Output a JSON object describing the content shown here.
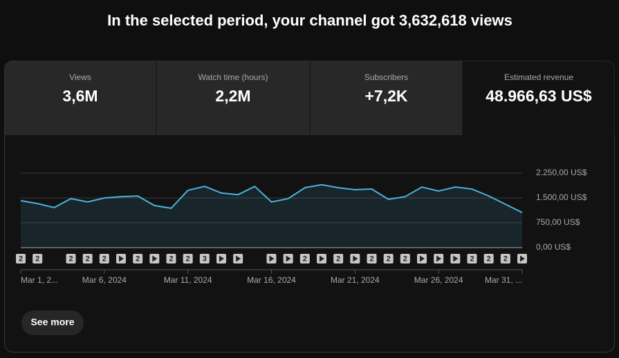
{
  "header": {
    "title": "In the selected period, your channel got 3,632,618 views"
  },
  "metrics": [
    {
      "label": "Views",
      "value": "3,6M"
    },
    {
      "label": "Watch time (hours)",
      "value": "2,2M"
    },
    {
      "label": "Subscribers",
      "value": "+7,2K"
    },
    {
      "label": "Estimated revenue",
      "value": "48.966,63 US$"
    }
  ],
  "chart_data": {
    "type": "area",
    "categories": [
      "Mar 1, 2...",
      null,
      null,
      null,
      null,
      "Mar 6, 2024",
      null,
      null,
      null,
      null,
      "Mar 11, 2024",
      null,
      null,
      null,
      null,
      "Mar 16, 2024",
      null,
      null,
      null,
      null,
      "Mar 21, 2024",
      null,
      null,
      null,
      null,
      "Mar 26, 2024",
      null,
      null,
      null,
      null,
      "Mar 31, ..."
    ],
    "values": [
      1420,
      1330,
      1210,
      1480,
      1380,
      1500,
      1540,
      1560,
      1270,
      1190,
      1730,
      1850,
      1650,
      1600,
      1850,
      1380,
      1480,
      1810,
      1900,
      1810,
      1750,
      1770,
      1460,
      1540,
      1830,
      1710,
      1830,
      1770,
      1560,
      1310,
      1060
    ],
    "color": "#4cb4dc",
    "ylim": [
      0,
      2250
    ],
    "yticks": [
      {
        "value": 0,
        "label": "0,00 US$"
      },
      {
        "value": 750,
        "label": "750,00 US$"
      },
      {
        "value": 1500,
        "label": "1.500,00 US$"
      },
      {
        "value": 2250,
        "label": "2.250,00 US$"
      }
    ],
    "grid": true,
    "annotations": [
      "2",
      "2",
      null,
      "2",
      "2",
      "2",
      {
        "icon": "play"
      },
      "2",
      {
        "icon": "play"
      },
      "2",
      "2",
      "3",
      {
        "icon": "play"
      },
      {
        "icon": "play"
      },
      null,
      {
        "icon": "play"
      },
      {
        "icon": "play"
      },
      "2",
      {
        "icon": "play"
      },
      "2",
      {
        "icon": "play"
      },
      "2",
      "2",
      "2",
      {
        "icon": "play"
      },
      {
        "icon": "play"
      },
      {
        "icon": "play"
      },
      "2",
      "2",
      "2",
      {
        "icon": "play"
      }
    ]
  },
  "button": {
    "label": "See more"
  }
}
